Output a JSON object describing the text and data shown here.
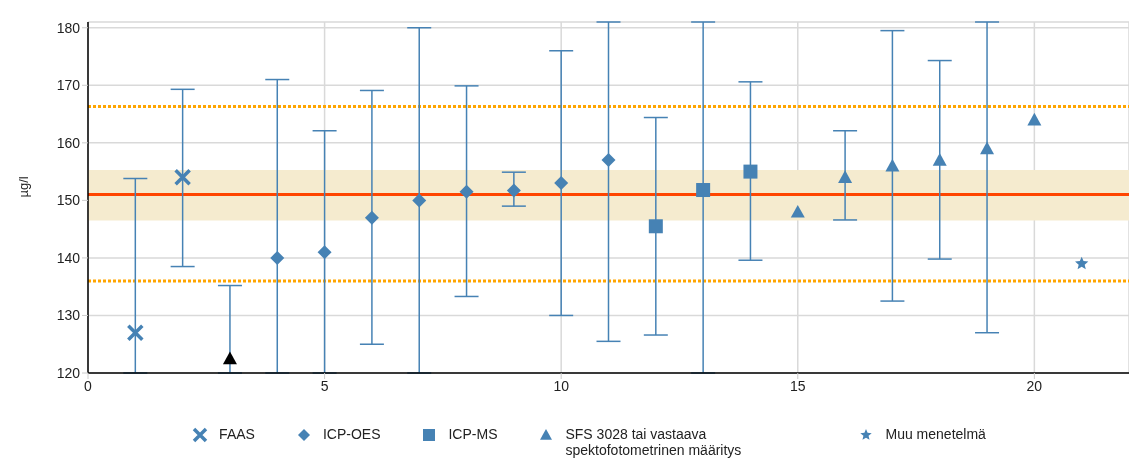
{
  "chart_data": {
    "type": "scatter",
    "ylabel": "µg/l",
    "xlim": [
      0,
      22
    ],
    "xticks": [
      0,
      5,
      10,
      15,
      20
    ],
    "ylim": [
      120,
      181
    ],
    "yticks": [
      120,
      130,
      140,
      150,
      160,
      170,
      180
    ],
    "grid": true,
    "legend": "bottom",
    "bands": [
      {
        "axis": "y",
        "from": 146.5,
        "to": 155.3,
        "color": "#f5ebcf"
      }
    ],
    "ref_lines": [
      {
        "axis": "y",
        "value": 151,
        "color": "#ff4500",
        "line_style": "solid"
      },
      {
        "axis": "y",
        "value": 166.3,
        "color": "#ffa500",
        "line_style": "dotted"
      },
      {
        "axis": "y",
        "value": 136,
        "color": "#ffa500",
        "line_style": "dotted"
      }
    ],
    "series": [
      {
        "name": "FAAS",
        "color": "#4682b4",
        "marker": "cross",
        "x": [
          1,
          2
        ],
        "values": [
          127,
          154
        ],
        "errors": [
          [
            120,
            153.8
          ],
          [
            138.5,
            169.3
          ]
        ]
      },
      {
        "color": "#000000",
        "marker": "triangle",
        "x": [
          3
        ],
        "values": [
          122.5
        ],
        "errors": [
          [
            120,
            135.2
          ]
        ]
      },
      {
        "name": "ICP-OES",
        "color": "#4682b4",
        "marker": "diamond",
        "x": [
          4,
          5,
          6,
          7,
          8,
          9,
          10,
          11
        ],
        "values": [
          140,
          141,
          147,
          150,
          151.5,
          151.7,
          153,
          157
        ],
        "errors": [
          [
            120,
            171
          ],
          [
            120,
            162.1
          ],
          [
            125,
            169.1
          ],
          [
            120,
            180
          ],
          [
            133.3,
            169.9
          ],
          [
            149,
            154.9
          ],
          [
            130,
            176
          ],
          [
            125.5,
            181
          ]
        ]
      },
      {
        "name": "ICP-MS",
        "color": "#4682b4",
        "marker": "square",
        "x": [
          12,
          13,
          14
        ],
        "values": [
          145.5,
          151.8,
          155
        ],
        "errors": [
          [
            126.6,
            164.4
          ],
          [
            120,
            181
          ],
          [
            139.6,
            170.6
          ]
        ]
      },
      {
        "name": "SFS 3028 tai vastaava spektofotometrinen määritys",
        "color": "#4682b4",
        "marker": "triangle",
        "x": [
          15,
          16,
          17,
          18,
          19,
          20
        ],
        "values": [
          148,
          154,
          156,
          157,
          159,
          164
        ],
        "errors": [
          null,
          [
            146.6,
            162.1
          ],
          [
            132.5,
            179.5
          ],
          [
            139.8,
            174.3
          ],
          [
            127,
            181
          ],
          null
        ]
      },
      {
        "name": "Muu menetelmä",
        "color": "#4682b4",
        "marker": "star",
        "x": [
          21
        ],
        "values": [
          139
        ],
        "errors": [
          null
        ]
      }
    ]
  }
}
